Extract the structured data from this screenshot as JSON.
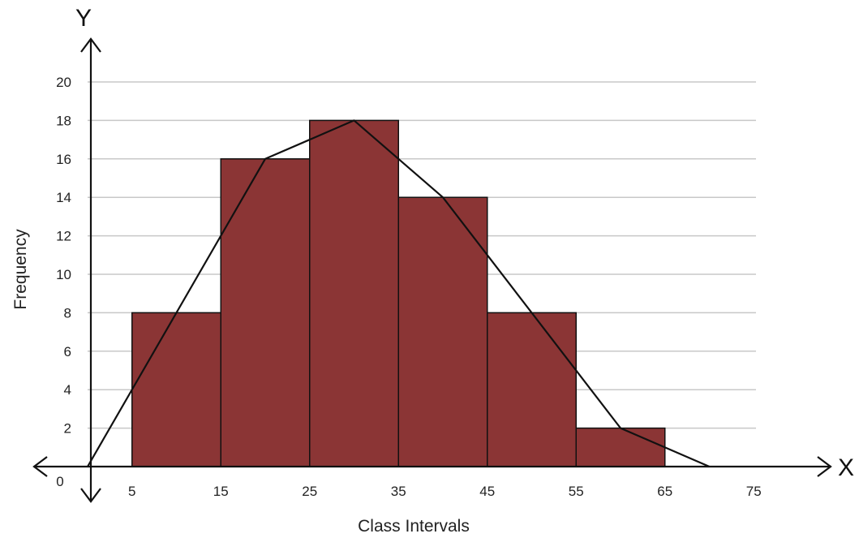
{
  "chart_data": {
    "type": "bar",
    "subtype": "histogram-with-frequency-polygon",
    "title": "",
    "xlabel": "Class Intervals",
    "ylabel": "Frequency",
    "x_axis_letter": "X",
    "y_axis_letter": "Y",
    "origin_label": "0",
    "xlim": [
      0,
      75
    ],
    "ylim": [
      0,
      20
    ],
    "x_ticks": [
      5,
      15,
      25,
      35,
      45,
      55,
      65,
      75
    ],
    "y_ticks": [
      2,
      4,
      6,
      8,
      10,
      12,
      14,
      16,
      18,
      20
    ],
    "grid": "horizontal",
    "bins": [
      {
        "from": 5,
        "to": 15,
        "value": 8
      },
      {
        "from": 15,
        "to": 25,
        "value": 16
      },
      {
        "from": 25,
        "to": 35,
        "value": 18
      },
      {
        "from": 35,
        "to": 45,
        "value": 14
      },
      {
        "from": 45,
        "to": 55,
        "value": 8
      },
      {
        "from": 55,
        "to": 65,
        "value": 2
      }
    ],
    "polygon": {
      "x": [
        0,
        20,
        30,
        40,
        60,
        70
      ],
      "y": [
        0,
        16,
        18,
        14,
        2,
        0
      ]
    },
    "colors": {
      "bar_fill": "#8b3535",
      "bar_stroke": "#111111",
      "grid": "#c8c8c8",
      "line": "#111111",
      "axis": "#111111"
    }
  }
}
